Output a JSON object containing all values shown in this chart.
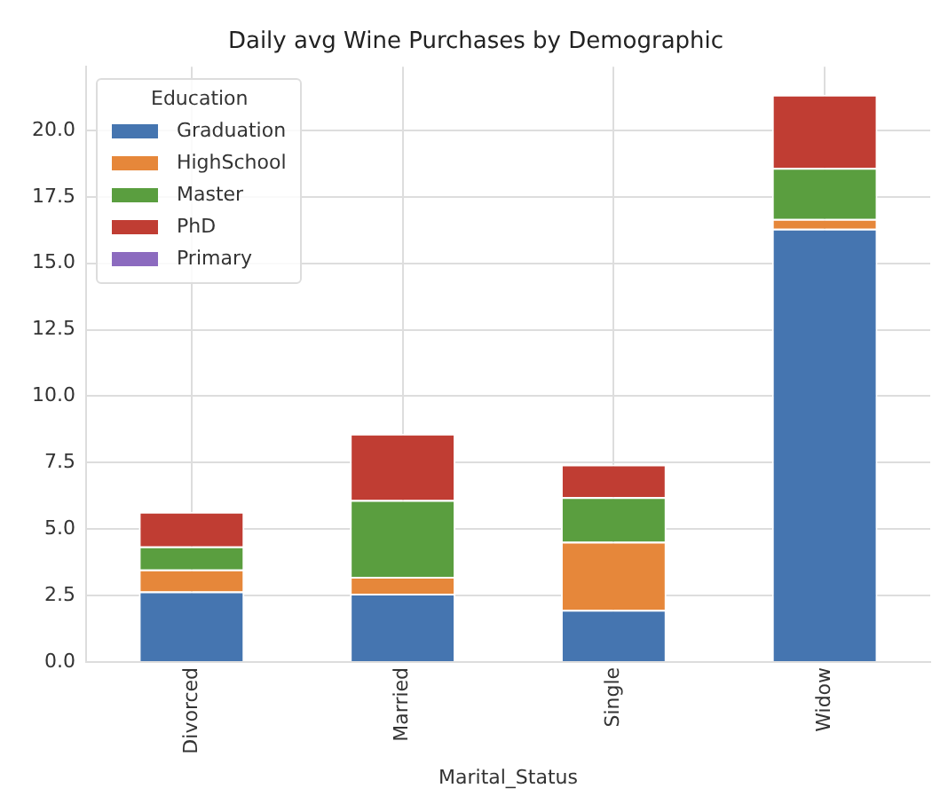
{
  "chart_data": {
    "type": "bar",
    "title": "Daily avg Wine Purchases by Demographic",
    "xlabel": "Marital_Status",
    "legend_title": "Education",
    "categories": [
      "Divorced",
      "Married",
      "Single",
      "Widow"
    ],
    "series": [
      {
        "name": "Graduation",
        "color": "#4575b0",
        "values": [
          2.65,
          2.57,
          1.96,
          16.3
        ]
      },
      {
        "name": "HighSchool",
        "color": "#e6873a",
        "values": [
          0.83,
          0.63,
          2.56,
          0.37
        ]
      },
      {
        "name": "Master",
        "color": "#5a9e3f",
        "values": [
          0.87,
          2.89,
          1.68,
          1.92
        ]
      },
      {
        "name": "PhD",
        "color": "#c03d33",
        "values": [
          1.3,
          2.5,
          1.23,
          2.76
        ]
      },
      {
        "name": "Primary",
        "color": "#8c6bbf",
        "values": [
          0,
          0,
          0,
          0
        ]
      }
    ],
    "stacked": true,
    "ylim": [
      0,
      22.4
    ],
    "yticks": [
      {
        "value": 0,
        "label": "0.0"
      },
      {
        "value": 2.5,
        "label": "2.5"
      },
      {
        "value": 5,
        "label": "5.0"
      },
      {
        "value": 7.5,
        "label": "7.5"
      },
      {
        "value": 10,
        "label": "10.0"
      },
      {
        "value": 12.5,
        "label": "12.5"
      },
      {
        "value": 15,
        "label": "15.0"
      },
      {
        "value": 17.5,
        "label": "17.5"
      },
      {
        "value": 20,
        "label": "20.0"
      }
    ],
    "grid": true,
    "legend": "top left"
  }
}
